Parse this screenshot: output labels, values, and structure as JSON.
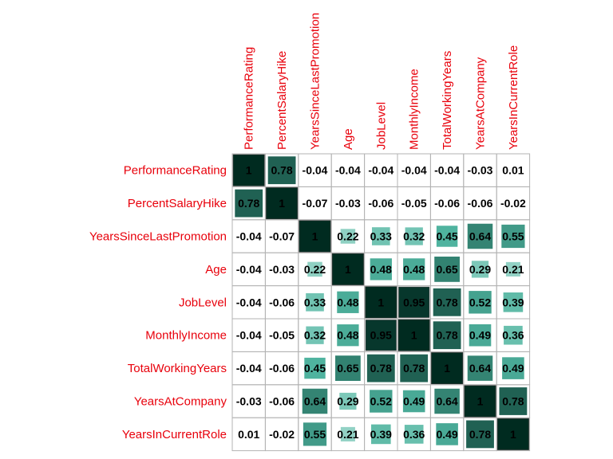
{
  "chart_data": {
    "type": "heatmap",
    "variables": [
      "PerformanceRating",
      "PercentSalaryHike",
      "YearsSinceLastPromotion",
      "Age",
      "JobLevel",
      "MonthlyIncome",
      "TotalWorkingYears",
      "YearsAtCompany",
      "YearsInCurrentRole"
    ],
    "value_labels": [
      [
        "1",
        "0.78",
        "-0.04",
        "-0.04",
        "-0.04",
        "-0.04",
        "-0.04",
        "-0.03",
        "0.01"
      ],
      [
        "0.78",
        "1",
        "-0.07",
        "-0.03",
        "-0.06",
        "-0.05",
        "-0.06",
        "-0.06",
        "-0.02"
      ],
      [
        "-0.04",
        "-0.07",
        "1",
        "0.22",
        "0.33",
        "0.32",
        "0.45",
        "0.64",
        "0.55"
      ],
      [
        "-0.04",
        "-0.03",
        "0.22",
        "1",
        "0.48",
        "0.48",
        "0.65",
        "0.29",
        "0.21"
      ],
      [
        "-0.04",
        "-0.06",
        "0.33",
        "0.48",
        "1",
        "0.95",
        "0.78",
        "0.52",
        "0.39"
      ],
      [
        "-0.04",
        "-0.05",
        "0.32",
        "0.48",
        "0.95",
        "1",
        "0.78",
        "0.49",
        "0.36"
      ],
      [
        "-0.04",
        "-0.06",
        "0.45",
        "0.65",
        "0.78",
        "0.78",
        "1",
        "0.64",
        "0.49"
      ],
      [
        "-0.03",
        "-0.06",
        "0.64",
        "0.29",
        "0.52",
        "0.49",
        "0.64",
        "1",
        "0.78"
      ],
      [
        "0.01",
        "-0.02",
        "0.55",
        "0.21",
        "0.39",
        "0.36",
        "0.49",
        "0.78",
        "1"
      ]
    ],
    "color_scale": {
      "low": "#cdeee6",
      "mid": "#4fb39f",
      "high": "#002b20"
    },
    "label_color": "#e8000b",
    "grid_color": "#b3b3b3",
    "legend": "none"
  }
}
